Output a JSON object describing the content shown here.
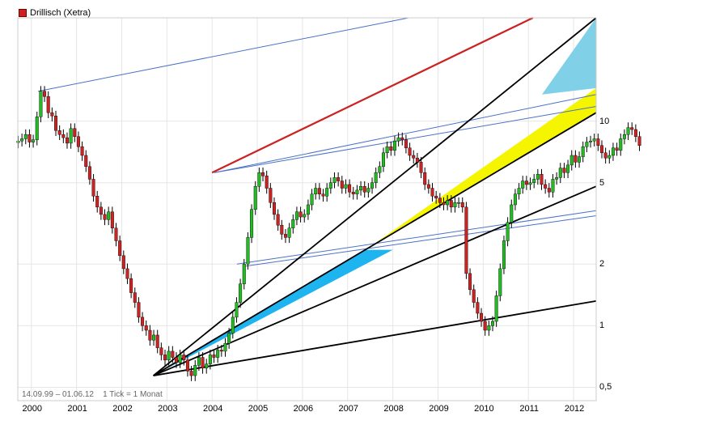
{
  "chart_data": {
    "type": "candlestick",
    "legend": {
      "label": "Drillisch (Xetra)",
      "color": "#cc2222"
    },
    "footer": {
      "range": "14.09.99 – 01.06.12",
      "interval": "1 Tick = 1 Monat"
    },
    "x_ticks": [
      "2000",
      "2001",
      "2002",
      "2003",
      "2004",
      "2005",
      "2006",
      "2007",
      "2008",
      "2009",
      "2010",
      "2011",
      "2012"
    ],
    "y_ticks": [
      {
        "value": 10,
        "label": "10"
      },
      {
        "value": 5,
        "label": "5"
      },
      {
        "value": 2,
        "label": "2"
      },
      {
        "value": 1,
        "label": "1"
      },
      {
        "value": 0.5,
        "label": "0,5"
      }
    ],
    "xlim": [
      1999.7,
      2012.5
    ],
    "ylim": [
      0.43,
      32
    ],
    "yscale": "log",
    "grid": true,
    "colors": {
      "up": "#22bb22",
      "down": "#cc2222",
      "wick": "#000000"
    },
    "monthly_close": [
      8.0,
      8.2,
      8.6,
      7.9,
      8.1,
      10.5,
      14.0,
      13.2,
      11.0,
      10.6,
      9.0,
      8.6,
      8.3,
      7.8,
      9.2,
      8.4,
      7.5,
      6.8,
      6.0,
      5.2,
      4.3,
      3.8,
      3.5,
      3.3,
      3.6,
      3.0,
      2.6,
      2.2,
      1.9,
      1.7,
      1.45,
      1.3,
      1.1,
      1.0,
      0.95,
      0.85,
      0.9,
      0.78,
      0.72,
      0.68,
      0.75,
      0.7,
      0.66,
      0.72,
      0.68,
      0.6,
      0.57,
      0.64,
      0.7,
      0.62,
      0.65,
      0.72,
      0.7,
      0.76,
      0.75,
      0.82,
      0.92,
      1.1,
      1.3,
      1.6,
      2.0,
      2.7,
      3.7,
      4.8,
      5.6,
      5.4,
      4.7,
      4.0,
      3.5,
      3.1,
      2.8,
      2.7,
      3.0,
      3.3,
      3.6,
      3.4,
      3.5,
      3.9,
      4.4,
      4.7,
      4.4,
      4.3,
      4.7,
      5.0,
      5.3,
      5.1,
      4.7,
      4.9,
      4.5,
      4.4,
      4.6,
      4.8,
      4.5,
      4.7,
      5.0,
      5.6,
      6.0,
      7.0,
      7.5,
      7.2,
      8.0,
      8.3,
      8.1,
      7.4,
      6.8,
      6.6,
      6.3,
      5.6,
      4.9,
      4.7,
      4.3,
      4.2,
      4.0,
      3.9,
      4.1,
      3.8,
      4.0,
      4.0,
      3.8,
      1.8,
      1.5,
      1.3,
      1.15,
      1.05,
      0.95,
      1.0,
      1.05,
      1.4,
      1.9,
      2.6,
      3.2,
      3.9,
      4.4,
      4.7,
      5.1,
      4.9,
      5.0,
      5.2,
      5.5,
      4.9,
      4.7,
      4.5,
      5.2,
      5.3,
      5.9,
      5.6,
      6.1,
      6.8,
      6.3,
      6.7,
      7.5,
      7.9,
      8.0,
      8.2,
      7.6,
      7.0,
      6.6,
      6.8,
      7.4,
      7.2,
      8.2,
      8.6,
      9.3,
      9.1,
      8.4,
      7.6
    ],
    "reference_lines": [
      {
        "kind": "blue-thin",
        "x1": 2000.15,
        "y1": 14.0,
        "x2": 2008.35,
        "y2": 32
      },
      {
        "kind": "red-bold",
        "x1": 2004.0,
        "y1": 5.6,
        "x2": 2011.1,
        "y2": 32
      },
      {
        "kind": "blue-thin",
        "x1": 2004.05,
        "y1": 5.6,
        "x2": 2012.5,
        "y2": 13.5
      },
      {
        "kind": "blue-thin",
        "x1": 2004.05,
        "y1": 5.6,
        "x2": 2012.5,
        "y2": 11.8
      },
      {
        "kind": "blue-thin",
        "x1": 2004.55,
        "y1": 2.0,
        "x2": 2012.5,
        "y2": 3.65
      },
      {
        "kind": "blue-thin",
        "x1": 2004.7,
        "y1": 1.95,
        "x2": 2012.5,
        "y2": 3.45
      },
      {
        "kind": "black-bold",
        "x1": 2002.7,
        "y1": 0.57,
        "x2": 2012.5,
        "y2": 32
      },
      {
        "kind": "black-bold",
        "x1": 2002.7,
        "y1": 0.57,
        "x2": 2012.5,
        "y2": 11.0
      },
      {
        "kind": "black-bold",
        "x1": 2002.7,
        "y1": 0.57,
        "x2": 2012.5,
        "y2": 4.8
      },
      {
        "kind": "black-bold",
        "x1": 2002.7,
        "y1": 0.57,
        "x2": 2012.5,
        "y2": 1.32
      }
    ],
    "channels": [
      {
        "color": "#f5f500",
        "points": [
          [
            2007.4,
            2.35
          ],
          [
            2012.5,
            11.0
          ],
          [
            2012.5,
            14.5
          ]
        ]
      },
      {
        "color": "#1eb4f0",
        "points": [
          [
            2002.7,
            0.57
          ],
          [
            2007.4,
            2.35
          ],
          [
            2008.0,
            2.35
          ],
          [
            2002.7,
            0.57
          ]
        ]
      },
      {
        "color": "#80d0e8",
        "points": [
          [
            2011.3,
            13.5
          ],
          [
            2012.5,
            32
          ],
          [
            2012.5,
            14.5
          ]
        ]
      }
    ]
  }
}
